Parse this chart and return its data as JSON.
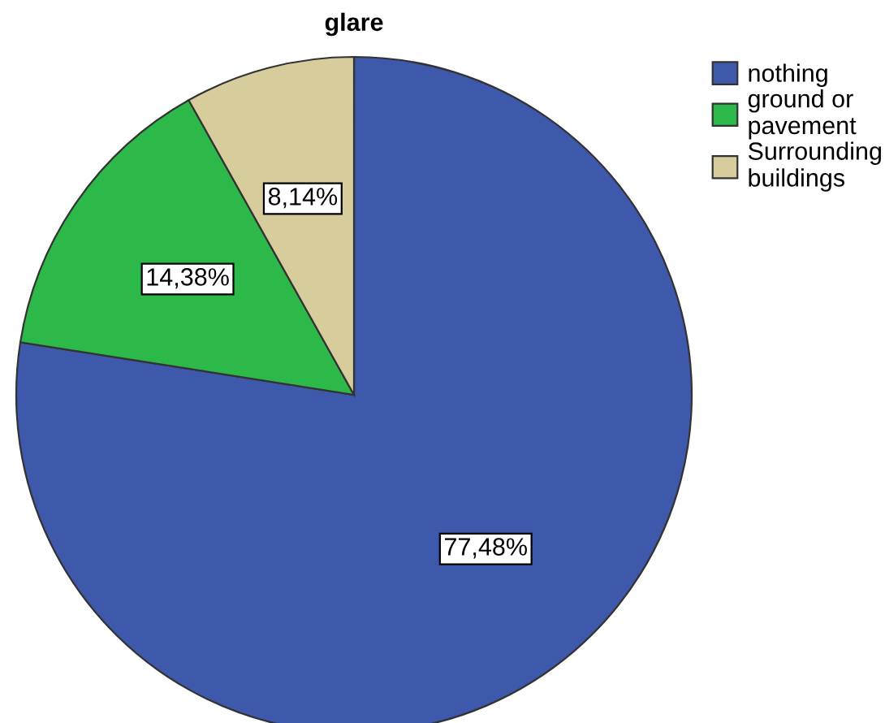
{
  "chart_data": {
    "type": "pie",
    "title": "glare",
    "categories": [
      "nothing",
      "ground or pavement",
      "Surrounding buildings"
    ],
    "values": [
      77.48,
      14.38,
      8.14
    ],
    "colors": [
      "#3e58ac",
      "#2db84a",
      "#d6cc9c"
    ],
    "value_labels": [
      "77,48%",
      "14,38%",
      "8,14%"
    ],
    "legend": "top right"
  }
}
